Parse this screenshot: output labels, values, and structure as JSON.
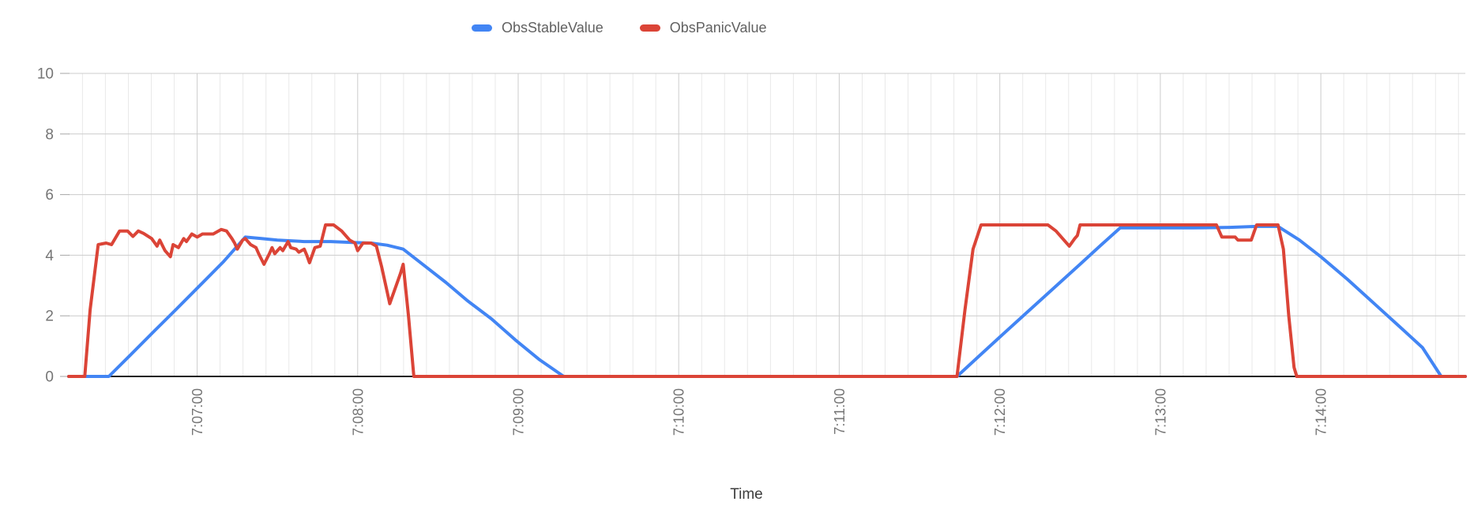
{
  "colors": {
    "background": "#ffffff",
    "series_stable": "#4285f4",
    "series_panic": "#db4437",
    "grid_major": "#cccccc",
    "grid_minor": "#e9e9e9",
    "axis_line": "#212121",
    "tick_label": "#757575",
    "legend_text": "#616161",
    "axis_title_text": "#3d3d3d"
  },
  "legend": {
    "items": [
      {
        "label": "ObsStableValue",
        "color": "#4285f4"
      },
      {
        "label": "ObsPanicValue",
        "color": "#db4437"
      }
    ]
  },
  "axis_titles": {
    "x": "Time",
    "y": ""
  },
  "chart_data": {
    "type": "line",
    "title": "",
    "xlabel": "Time",
    "ylabel": "",
    "x_unit": "seconds after 7:06:00",
    "x_domain": [
      12,
      534
    ],
    "ylim": [
      0,
      10
    ],
    "y_ticks": [
      0,
      2,
      4,
      6,
      8,
      10
    ],
    "x_ticks": [
      {
        "t": 60,
        "label": "7:07:00"
      },
      {
        "t": 120,
        "label": "7:08:00"
      },
      {
        "t": 180,
        "label": "7:09:00"
      },
      {
        "t": 240,
        "label": "7:10:00"
      },
      {
        "t": 300,
        "label": "7:11:00"
      },
      {
        "t": 360,
        "label": "7:12:00"
      },
      {
        "t": 420,
        "label": "7:13:00"
      },
      {
        "t": 480,
        "label": "7:14:00"
      }
    ],
    "x_tick_rotation": -90,
    "minor_divisions_per_minute": 7,
    "grid": true,
    "legend_position": "top",
    "series": [
      {
        "name": "ObsStableValue",
        "color": "#4285f4",
        "points": [
          [
            12,
            0
          ],
          [
            27,
            0
          ],
          [
            35,
            0.7
          ],
          [
            44,
            1.5
          ],
          [
            52,
            2.2
          ],
          [
            61,
            3.0
          ],
          [
            70,
            3.8
          ],
          [
            78,
            4.6
          ],
          [
            84,
            4.55
          ],
          [
            90,
            4.5
          ],
          [
            100,
            4.45
          ],
          [
            110,
            4.45
          ],
          [
            118,
            4.42
          ],
          [
            125,
            4.4
          ],
          [
            131,
            4.33
          ],
          [
            137,
            4.2
          ],
          [
            145,
            3.65
          ],
          [
            153,
            3.1
          ],
          [
            161,
            2.5
          ],
          [
            170,
            1.9
          ],
          [
            179,
            1.2
          ],
          [
            188,
            0.55
          ],
          [
            197,
            0
          ],
          [
            240,
            0
          ],
          [
            290,
            0
          ],
          [
            344,
            0
          ],
          [
            352,
            0.65
          ],
          [
            360,
            1.3
          ],
          [
            370,
            2.1
          ],
          [
            380,
            2.9
          ],
          [
            390,
            3.7
          ],
          [
            398,
            4.35
          ],
          [
            405,
            4.9
          ],
          [
            418,
            4.9
          ],
          [
            432,
            4.9
          ],
          [
            446,
            4.92
          ],
          [
            456,
            4.95
          ],
          [
            464,
            4.95
          ],
          [
            472,
            4.5
          ],
          [
            480,
            3.95
          ],
          [
            490,
            3.2
          ],
          [
            500,
            2.4
          ],
          [
            510,
            1.6
          ],
          [
            518,
            0.95
          ],
          [
            525,
            0
          ],
          [
            534,
            0
          ]
        ]
      },
      {
        "name": "ObsPanicValue",
        "color": "#db4437",
        "points": [
          [
            12,
            0
          ],
          [
            18,
            0
          ],
          [
            20,
            2.2
          ],
          [
            23,
            4.35
          ],
          [
            26,
            4.4
          ],
          [
            28,
            4.35
          ],
          [
            31,
            4.8
          ],
          [
            34,
            4.8
          ],
          [
            36,
            4.62
          ],
          [
            38,
            4.8
          ],
          [
            40,
            4.72
          ],
          [
            43,
            4.55
          ],
          [
            45,
            4.3
          ],
          [
            46,
            4.5
          ],
          [
            48,
            4.15
          ],
          [
            50,
            3.95
          ],
          [
            51,
            4.35
          ],
          [
            53,
            4.25
          ],
          [
            55,
            4.55
          ],
          [
            56,
            4.45
          ],
          [
            58,
            4.7
          ],
          [
            60,
            4.6
          ],
          [
            62,
            4.7
          ],
          [
            66,
            4.7
          ],
          [
            69,
            4.85
          ],
          [
            71,
            4.8
          ],
          [
            73,
            4.55
          ],
          [
            74,
            4.4
          ],
          [
            75,
            4.2
          ],
          [
            77,
            4.5
          ],
          [
            78,
            4.55
          ],
          [
            80,
            4.35
          ],
          [
            82,
            4.25
          ],
          [
            83,
            4.05
          ],
          [
            85,
            3.7
          ],
          [
            87,
            4.05
          ],
          [
            88,
            4.25
          ],
          [
            89,
            4.05
          ],
          [
            91,
            4.25
          ],
          [
            92,
            4.15
          ],
          [
            94,
            4.45
          ],
          [
            95,
            4.25
          ],
          [
            97,
            4.2
          ],
          [
            98,
            4.1
          ],
          [
            100,
            4.2
          ],
          [
            101,
            4.0
          ],
          [
            102,
            3.75
          ],
          [
            104,
            4.25
          ],
          [
            106,
            4.3
          ],
          [
            108,
            5.0
          ],
          [
            111,
            5.0
          ],
          [
            114,
            4.8
          ],
          [
            117,
            4.5
          ],
          [
            119,
            4.4
          ],
          [
            120,
            4.15
          ],
          [
            122,
            4.4
          ],
          [
            125,
            4.4
          ],
          [
            127,
            4.3
          ],
          [
            129,
            3.6
          ],
          [
            132,
            2.4
          ],
          [
            136,
            3.4
          ],
          [
            137,
            3.7
          ],
          [
            139,
            2.0
          ],
          [
            141,
            0
          ],
          [
            160,
            0
          ],
          [
            220,
            0
          ],
          [
            290,
            0
          ],
          [
            344,
            0
          ],
          [
            347,
            2.2
          ],
          [
            350,
            4.2
          ],
          [
            353,
            5.0
          ],
          [
            365,
            5.0
          ],
          [
            378,
            5.0
          ],
          [
            381,
            4.8
          ],
          [
            386,
            4.3
          ],
          [
            388,
            4.55
          ],
          [
            389,
            4.65
          ],
          [
            390,
            5.0
          ],
          [
            400,
            5.0
          ],
          [
            420,
            5.0
          ],
          [
            441,
            5.0
          ],
          [
            443,
            4.6
          ],
          [
            448,
            4.6
          ],
          [
            449,
            4.5
          ],
          [
            454,
            4.5
          ],
          [
            456,
            5.0
          ],
          [
            460,
            5.0
          ],
          [
            464,
            5.0
          ],
          [
            466,
            4.2
          ],
          [
            468,
            2.0
          ],
          [
            470,
            0.3
          ],
          [
            471,
            0
          ],
          [
            490,
            0
          ],
          [
            515,
            0
          ],
          [
            534,
            0
          ]
        ]
      }
    ]
  }
}
